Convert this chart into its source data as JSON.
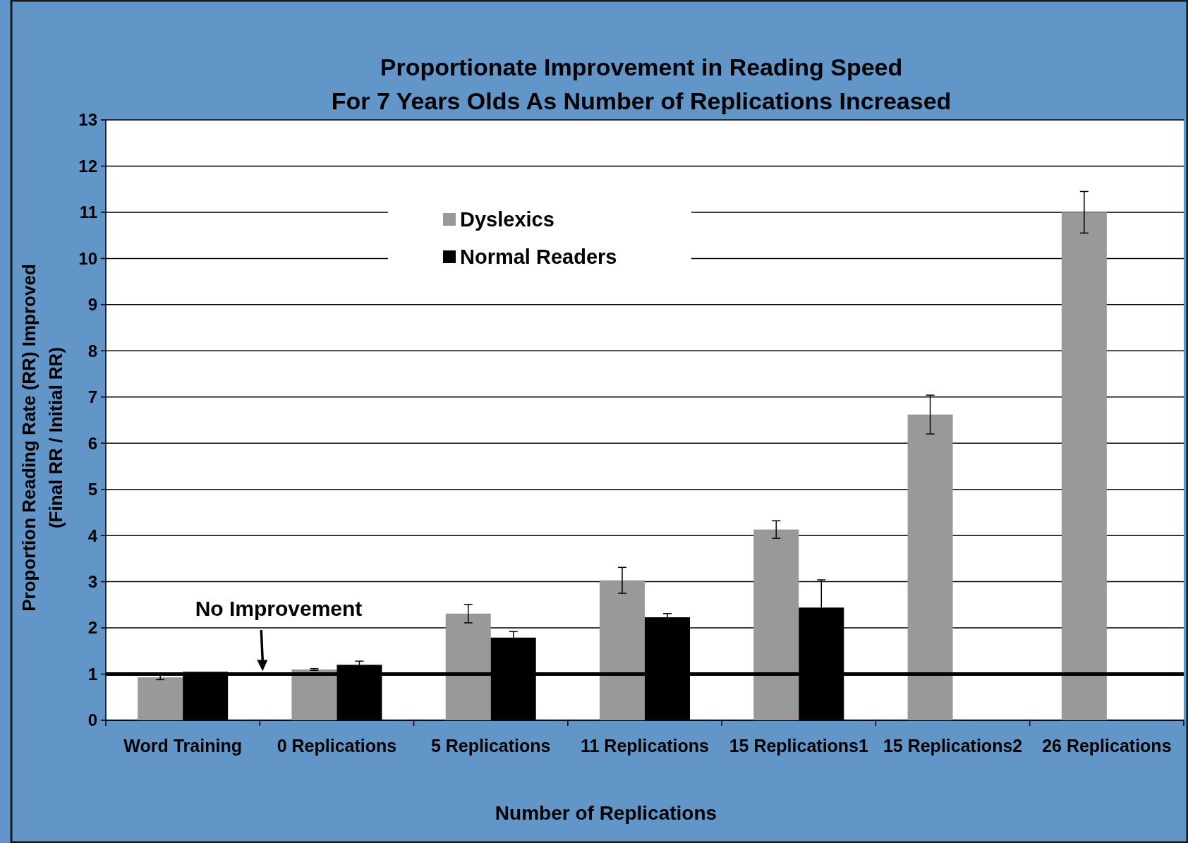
{
  "chart_data": {
    "type": "bar",
    "title": "Proportionate Improvement in Reading Speed\nFor 7 Years Olds As Number of Replications Increased",
    "xlabel": "Number of Replications",
    "ylabel": "Proportion Reading Rate (RR) Improved\n(Final RR / Initial RR)",
    "categories": [
      "Word Training",
      "0 Replications",
      "5 Replications",
      "11 Replications",
      "15 Replications1",
      "15 Replications2",
      "26 Replications"
    ],
    "series": [
      {
        "name": "Dyslexics",
        "color": "#999999",
        "values": [
          0.93,
          1.1,
          2.31,
          3.03,
          4.13,
          6.62,
          11.0
        ],
        "errors": [
          0.05,
          0.02,
          0.2,
          0.28,
          0.19,
          0.42,
          0.45
        ]
      },
      {
        "name": "Normal Readers",
        "color": "#000000",
        "values": [
          1.05,
          1.2,
          1.79,
          2.23,
          2.44,
          null,
          null
        ],
        "errors": [
          null,
          0.08,
          0.13,
          0.08,
          0.6,
          null,
          null
        ]
      }
    ],
    "ylim": [
      0,
      13
    ],
    "yticks": [
      0,
      1,
      2,
      3,
      4,
      5,
      6,
      7,
      8,
      9,
      10,
      11,
      12,
      13
    ],
    "grid": "y",
    "legend": "top",
    "ref_lines": [
      {
        "axis": "y",
        "value": 1,
        "label": "No Improvement",
        "color": "#000000"
      }
    ]
  }
}
